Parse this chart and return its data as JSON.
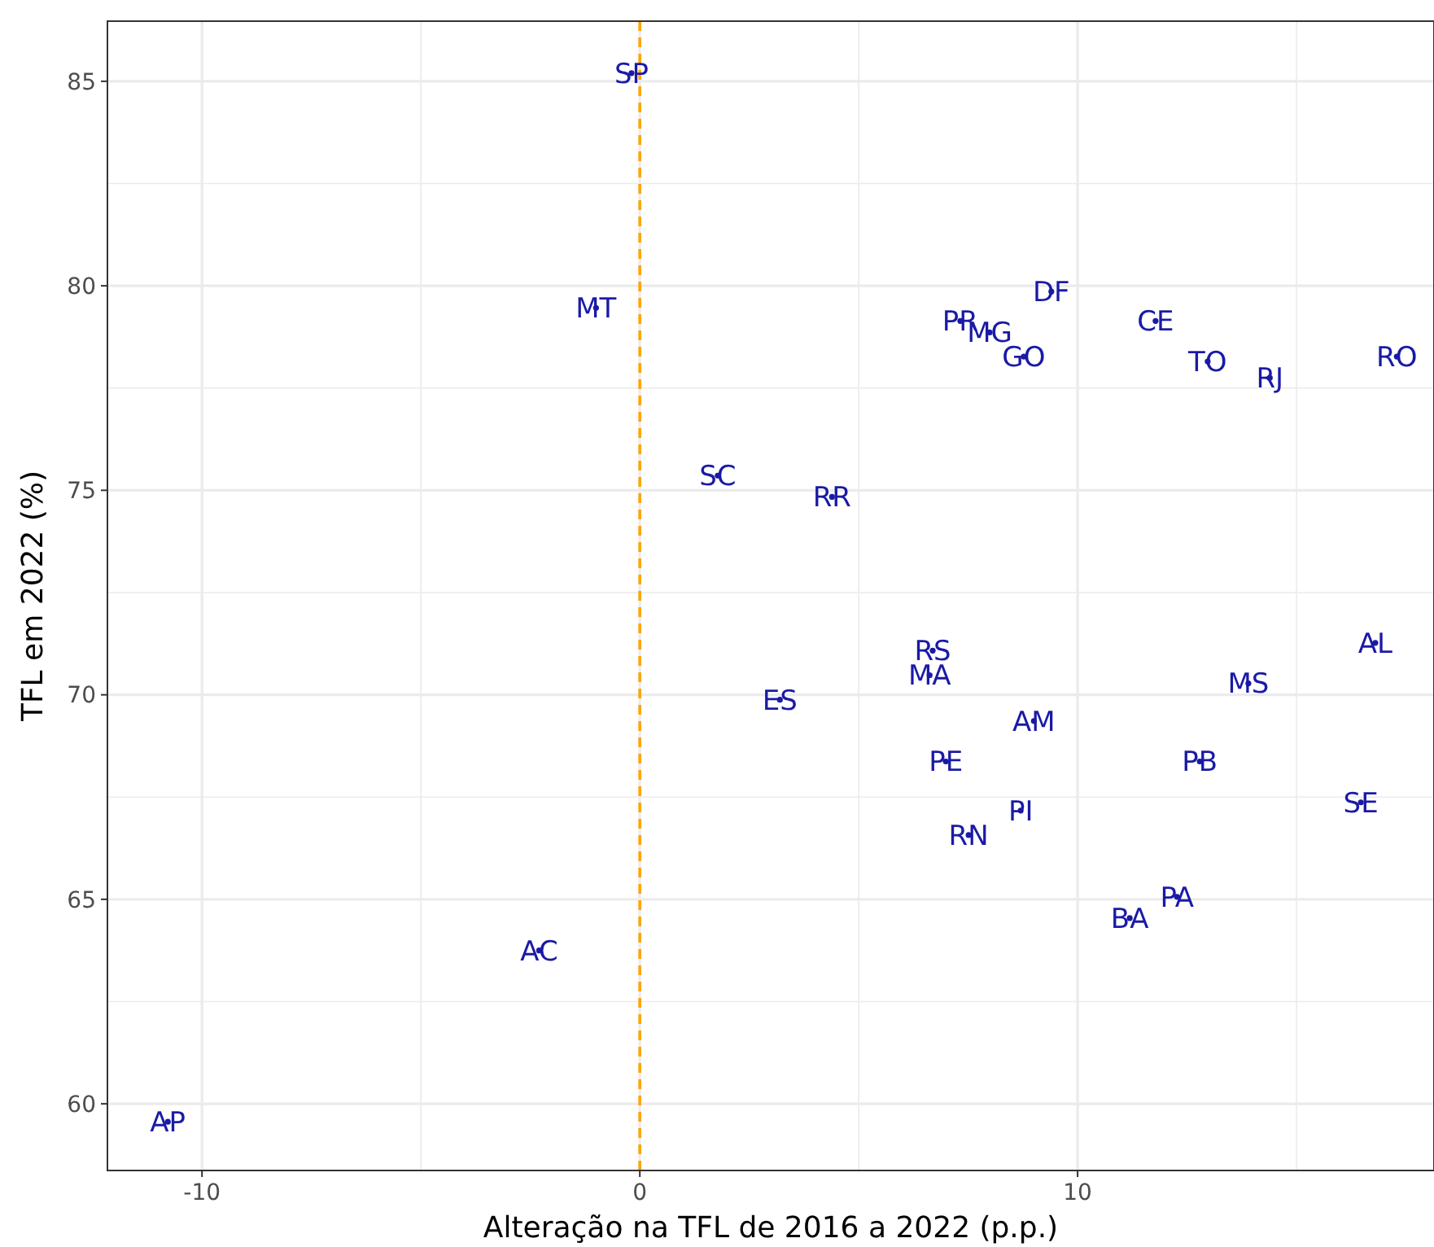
{
  "chart_data": {
    "type": "scatter",
    "xlabel": "Alteração na TFL de 2016 a 2022 (p.p.)",
    "ylabel": "TFL em 2022 (%)",
    "xlim": [
      -12.16,
      18.14
    ],
    "ylim": [
      58.37,
      86.47
    ],
    "xticks": [
      -10,
      {
        "value": -5,
        "label": null
      },
      0,
      {
        "value": 5,
        "label": null
      },
      10,
      {
        "value": 15,
        "label": null
      }
    ],
    "yticks": [
      {
        "value": 62.5,
        "label": null
      },
      {
        "value": 67.5,
        "label": null
      },
      {
        "value": 72.5,
        "label": null
      },
      {
        "value": 77.5,
        "label": null
      },
      {
        "value": 82.5,
        "label": null
      },
      60,
      65,
      70,
      75,
      80,
      85
    ],
    "grid": true,
    "marker": "circle",
    "ref_lines": [
      {
        "axis": "x",
        "value": 0,
        "color": "#ffa500",
        "line_style": "dashed"
      }
    ],
    "series": [
      {
        "color": "#1a1aa6",
        "x": [
          -0.19,
          -1.0,
          9.4,
          7.32,
          7.99,
          11.78,
          8.77,
          12.97,
          14.39,
          17.29,
          1.78,
          4.39,
          6.69,
          6.62,
          16.8,
          3.2,
          13.9,
          9.0,
          6.99,
          12.79,
          16.47,
          8.7,
          7.51,
          12.27,
          11.19,
          -2.3,
          -10.78
        ],
        "values": [
          85.2,
          79.46,
          79.86,
          79.14,
          78.86,
          79.14,
          78.27,
          78.15,
          77.75,
          78.27,
          75.36,
          74.84,
          71.08,
          70.48,
          71.27,
          69.88,
          70.28,
          69.36,
          68.37,
          68.37,
          67.37,
          67.17,
          66.57,
          65.06,
          64.54,
          63.75,
          59.56
        ],
        "value_labels": [
          "SP",
          "MT",
          "DF",
          "PR",
          "MG",
          "CE",
          "GO",
          "TO",
          "RJ",
          "RO",
          "SC",
          "RR",
          "RS",
          "MA",
          "AL",
          "ES",
          "MS",
          "AM",
          "PE",
          "PB",
          "SE",
          "PI",
          "RN",
          "PA",
          "BA",
          "AC",
          "AP"
        ]
      }
    ]
  }
}
